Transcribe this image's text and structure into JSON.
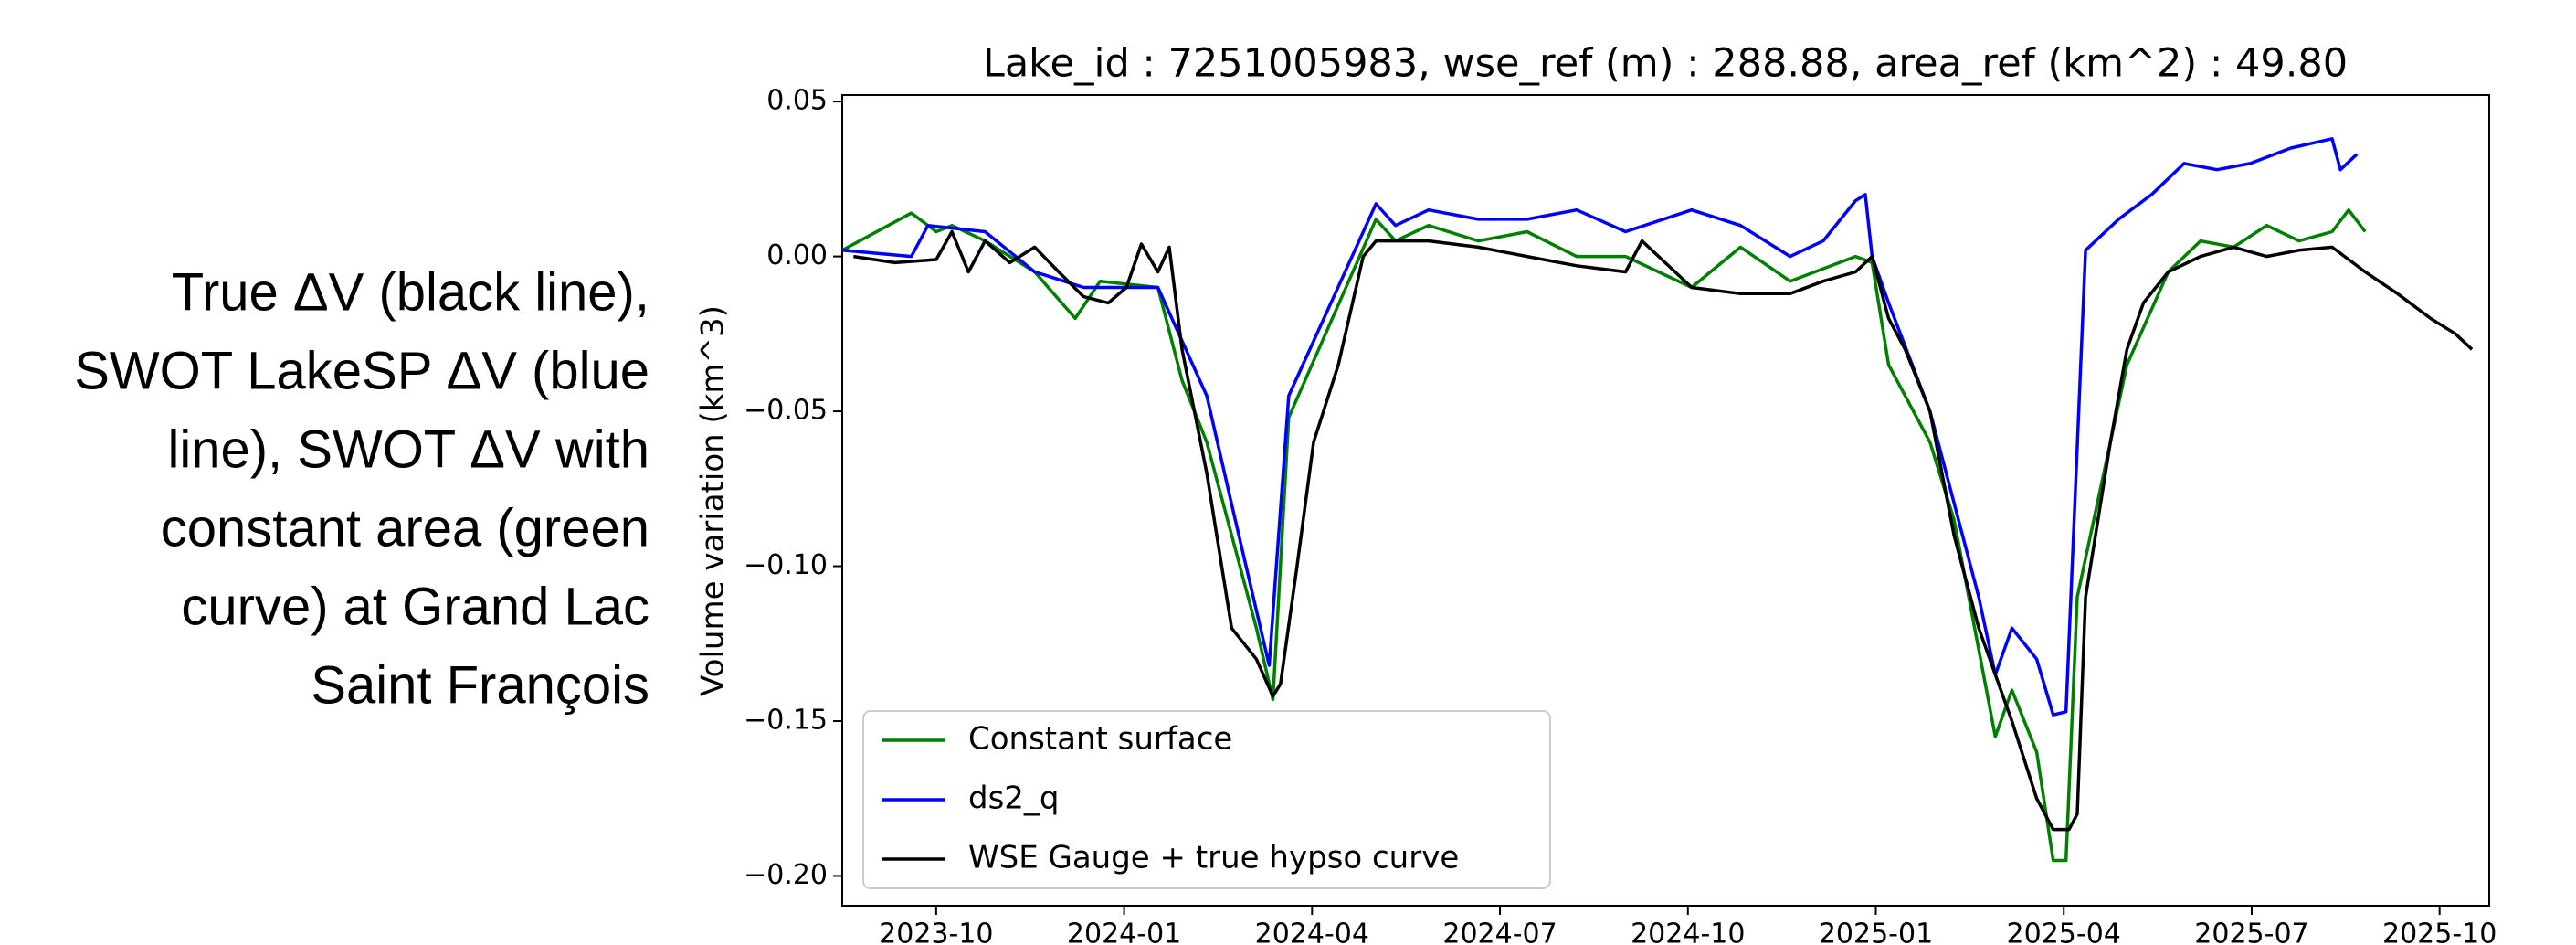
{
  "caption": [
    "True ΔV (black line),",
    "SWOT LakeSP ΔV (blue",
    "line), SWOT ΔV with",
    "constant area (green",
    "curve) at Grand Lac",
    "Saint François"
  ],
  "chart_data": {
    "type": "line",
    "title": "Lake_id : 7251005983, wse_ref (m) : 288.88, area_ref (km^2) : 49.80",
    "y_label": "Volume variation (km^3)",
    "xlim": [
      2023.625,
      2025.816
    ],
    "ylim": [
      -0.2096,
      0.0521
    ],
    "xticks": [
      {
        "value": 2023.75,
        "label": "2023-10"
      },
      {
        "value": 2024.0,
        "label": "2024-01"
      },
      {
        "value": 2024.25,
        "label": "2024-04"
      },
      {
        "value": 2024.5,
        "label": "2024-07"
      },
      {
        "value": 2024.75,
        "label": "2024-10"
      },
      {
        "value": 2025.0,
        "label": "2025-01"
      },
      {
        "value": 2025.25,
        "label": "2025-04"
      },
      {
        "value": 2025.5,
        "label": "2025-07"
      },
      {
        "value": 2025.75,
        "label": "2025-10"
      }
    ],
    "yticks": [
      {
        "value": 0.05,
        "label": "0.05"
      },
      {
        "value": 0.0,
        "label": "0.00"
      },
      {
        "value": -0.05,
        "label": "−0.05"
      },
      {
        "value": -0.1,
        "label": "−0.10"
      },
      {
        "value": -0.15,
        "label": "−0.15"
      },
      {
        "value": -0.2,
        "label": "−0.20"
      }
    ],
    "legend": "lower left",
    "series": [
      {
        "name": "Constant surface",
        "color": "#008000",
        "x": [
          2023.625,
          2023.717,
          2023.75,
          2023.771,
          2023.815,
          2023.881,
          2023.935,
          2023.968,
          2024.045,
          2024.077,
          2024.11,
          2024.143,
          2024.176,
          2024.198,
          2024.219,
          2024.335,
          2024.361,
          2024.405,
          2024.471,
          2024.536,
          2024.602,
          2024.667,
          2024.755,
          2024.82,
          2024.886,
          2024.973,
          2024.995,
          2025.017,
          2025.072,
          2025.104,
          2025.159,
          2025.181,
          2025.214,
          2025.236,
          2025.253,
          2025.268,
          2025.334,
          2025.389,
          2025.432,
          2025.476,
          2025.52,
          2025.563,
          2025.607,
          2025.629,
          2025.651
        ],
        "values": [
          0.002,
          0.014,
          0.008,
          0.01,
          0.005,
          -0.005,
          -0.02,
          -0.008,
          -0.01,
          -0.04,
          -0.06,
          -0.09,
          -0.12,
          -0.143,
          -0.052,
          0.012,
          0.005,
          0.01,
          0.005,
          0.008,
          0.0,
          0.0,
          -0.01,
          0.003,
          -0.008,
          0.0,
          -0.002,
          -0.035,
          -0.06,
          -0.085,
          -0.155,
          -0.14,
          -0.16,
          -0.195,
          -0.195,
          -0.11,
          -0.035,
          -0.005,
          0.005,
          0.003,
          0.01,
          0.005,
          0.008,
          0.015,
          0.008
        ]
      },
      {
        "name": "ds2_q",
        "color": "#0000ff",
        "x": [
          2023.625,
          2023.717,
          2023.739,
          2023.815,
          2023.881,
          2023.946,
          2024.045,
          2024.11,
          2024.143,
          2024.193,
          2024.219,
          2024.335,
          2024.361,
          2024.405,
          2024.471,
          2024.536,
          2024.602,
          2024.667,
          2024.755,
          2024.82,
          2024.886,
          2024.93,
          2024.973,
          2024.986,
          2024.995,
          2025.017,
          2025.072,
          2025.137,
          2025.159,
          2025.181,
          2025.214,
          2025.236,
          2025.253,
          2025.279,
          2025.323,
          2025.367,
          2025.41,
          2025.454,
          2025.498,
          2025.552,
          2025.607,
          2025.618,
          2025.64
        ],
        "values": [
          0.002,
          0.0,
          0.01,
          0.008,
          -0.005,
          -0.01,
          -0.01,
          -0.045,
          -0.08,
          -0.132,
          -0.045,
          0.017,
          0.01,
          0.015,
          0.012,
          0.012,
          0.015,
          0.008,
          0.015,
          0.01,
          0.0,
          0.005,
          0.018,
          0.02,
          0.0,
          -0.015,
          -0.05,
          -0.11,
          -0.135,
          -0.12,
          -0.13,
          -0.148,
          -0.147,
          0.002,
          0.012,
          0.02,
          0.03,
          0.028,
          0.03,
          0.035,
          0.038,
          0.028,
          0.033
        ]
      },
      {
        "name": "WSE Gauge + true hypso curve",
        "color": "#000000",
        "x": [
          2023.64,
          2023.695,
          2023.75,
          2023.771,
          2023.793,
          2023.815,
          2023.848,
          2023.881,
          2023.913,
          2023.946,
          2023.979,
          2024.003,
          2024.023,
          2024.045,
          2024.06,
          2024.077,
          2024.11,
          2024.143,
          2024.176,
          2024.198,
          2024.208,
          2024.23,
          2024.252,
          2024.285,
          2024.318,
          2024.335,
          2024.405,
          2024.471,
          2024.536,
          2024.602,
          2024.667,
          2024.689,
          2024.755,
          2024.82,
          2024.886,
          2024.93,
          2024.973,
          2024.995,
          2025.017,
          2025.039,
          2025.072,
          2025.104,
          2025.137,
          2025.159,
          2025.181,
          2025.214,
          2025.236,
          2025.257,
          2025.268,
          2025.279,
          2025.312,
          2025.334,
          2025.356,
          2025.389,
          2025.432,
          2025.476,
          2025.52,
          2025.563,
          2025.607,
          2025.651,
          2025.694,
          2025.738,
          2025.771,
          2025.793
        ],
        "values": [
          0.0,
          -0.002,
          -0.001,
          0.008,
          -0.005,
          0.005,
          -0.002,
          0.003,
          -0.005,
          -0.013,
          -0.015,
          -0.01,
          0.004,
          -0.005,
          0.003,
          -0.03,
          -0.07,
          -0.12,
          -0.13,
          -0.142,
          -0.138,
          -0.1,
          -0.06,
          -0.035,
          0.0,
          0.005,
          0.005,
          0.003,
          0.0,
          -0.003,
          -0.005,
          0.005,
          -0.01,
          -0.012,
          -0.012,
          -0.008,
          -0.005,
          0.0,
          -0.02,
          -0.03,
          -0.05,
          -0.09,
          -0.12,
          -0.135,
          -0.15,
          -0.175,
          -0.185,
          -0.185,
          -0.18,
          -0.11,
          -0.06,
          -0.03,
          -0.015,
          -0.005,
          0.0,
          0.003,
          0.0,
          0.002,
          0.003,
          -0.005,
          -0.012,
          -0.02,
          -0.025,
          -0.03
        ]
      }
    ]
  }
}
